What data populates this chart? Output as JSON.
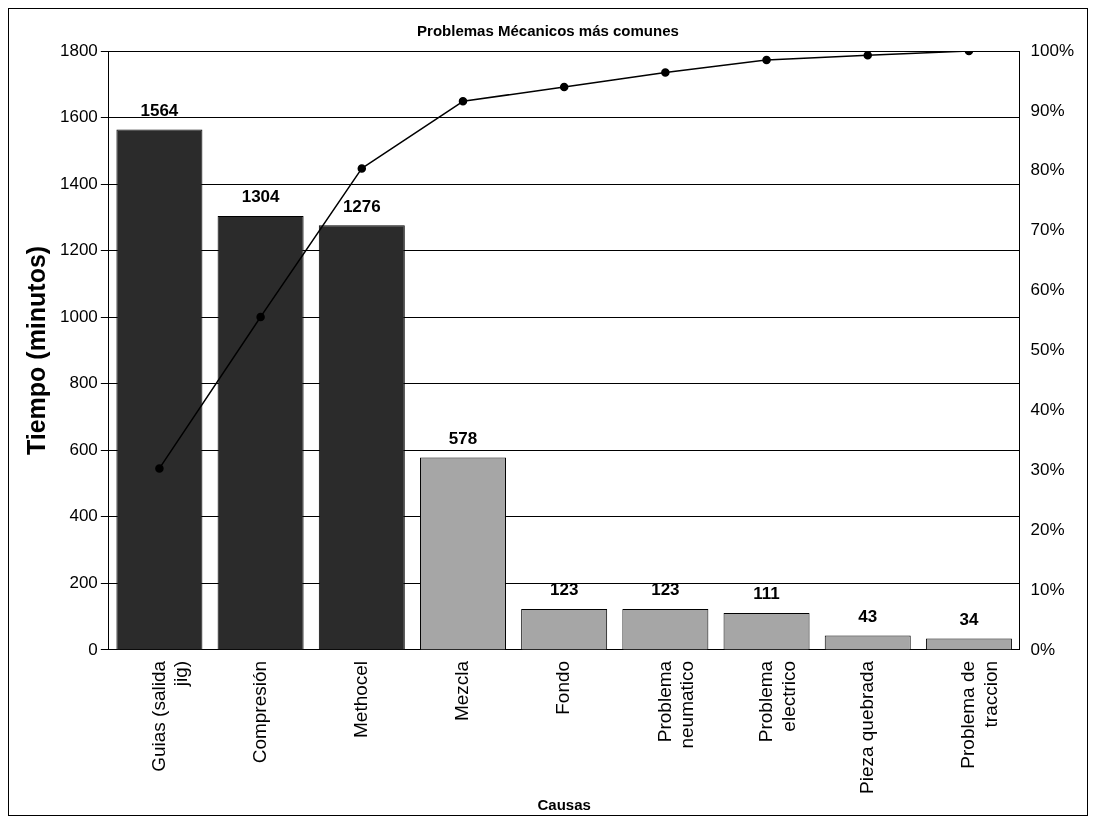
{
  "chart_data": {
    "type": "bar",
    "title": "Problemas Mécanicos más comunes",
    "xlabel": "Causas",
    "ylabel": "Tiempo (minutos)",
    "categories": [
      "Guias (salida jig)",
      "Compresión",
      "Methocel",
      "Mezcla",
      "Fondo",
      "Problema neumatico",
      "Problema electrico",
      "Pieza quebrada",
      "Problema de traccion"
    ],
    "series": [
      {
        "colors": [
          "#2b2b2b",
          "#2b2b2b",
          "#2b2b2b",
          "#a6a6a6",
          "#a6a6a6",
          "#a6a6a6",
          "#a6a6a6",
          "#a6a6a6",
          "#a6a6a6"
        ],
        "values": [
          1564,
          1304,
          1276,
          578,
          123,
          123,
          111,
          43,
          34
        ],
        "value_labels": [
          "1564",
          "1304",
          "1276",
          "578",
          "123",
          "123",
          "111",
          "43",
          "34"
        ]
      },
      {
        "type": "line",
        "axis": "y2",
        "color": "#000000",
        "values": [
          30.3,
          55.6,
          80.4,
          91.6,
          94.0,
          96.4,
          98.5,
          99.3,
          100
        ],
        "marker": "circle",
        "line_style": "solid"
      }
    ],
    "ylim": [
      0,
      1800
    ],
    "yticks": [
      0,
      200,
      400,
      600,
      800,
      1000,
      1200,
      1400,
      1600,
      1800
    ],
    "y2lim": [
      0,
      100
    ],
    "y2ticks": [
      {
        "value": 0,
        "label": "0%"
      },
      {
        "value": 10,
        "label": "10%"
      },
      {
        "value": 20,
        "label": "20%"
      },
      {
        "value": 30,
        "label": "30%"
      },
      {
        "value": 40,
        "label": "40%"
      },
      {
        "value": 50,
        "label": "50%"
      },
      {
        "value": 60,
        "label": "60%"
      },
      {
        "value": 70,
        "label": "70%"
      },
      {
        "value": 80,
        "label": "80%"
      },
      {
        "value": 90,
        "label": "90%"
      },
      {
        "value": 100,
        "label": "100%"
      }
    ],
    "grid": "y",
    "legend": false
  }
}
